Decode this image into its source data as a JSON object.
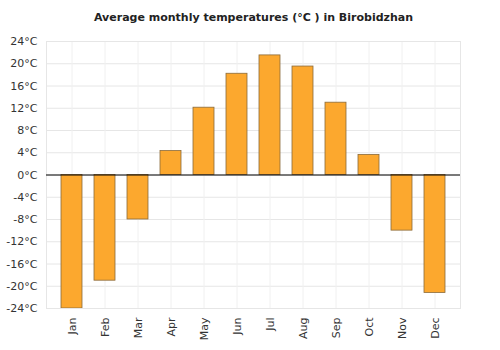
{
  "chart_data": {
    "type": "bar",
    "title": "Average monthly temperatures (°C ) in Birobidzhan",
    "categories": [
      "Jan",
      "Feb",
      "Mar",
      "Apr",
      "May",
      "Jun",
      "Jul",
      "Aug",
      "Sep",
      "Oct",
      "Nov",
      "Dec"
    ],
    "values": [
      -24,
      -19,
      -8,
      4.3,
      12.1,
      18.2,
      21.5,
      19.5,
      13,
      3.6,
      -10,
      -21.2
    ],
    "color": "#fca82e",
    "ylim": [
      -24,
      24
    ],
    "yticks": [
      {
        "value": -24,
        "label": "-24°C"
      },
      {
        "value": -20,
        "label": "-20°C"
      },
      {
        "value": -16,
        "label": "-16°C"
      },
      {
        "value": -12,
        "label": "-12°C"
      },
      {
        "value": -8,
        "label": "-8°C"
      },
      {
        "value": -4,
        "label": "-4°C"
      },
      {
        "value": 0,
        "label": "0°C"
      },
      {
        "value": 4,
        "label": "4°C"
      },
      {
        "value": 8,
        "label": "8°C"
      },
      {
        "value": 12,
        "label": "12°C"
      },
      {
        "value": 16,
        "label": "16°C"
      },
      {
        "value": 20,
        "label": "20°C"
      },
      {
        "value": 24,
        "label": "24°C"
      }
    ],
    "grid": true
  }
}
